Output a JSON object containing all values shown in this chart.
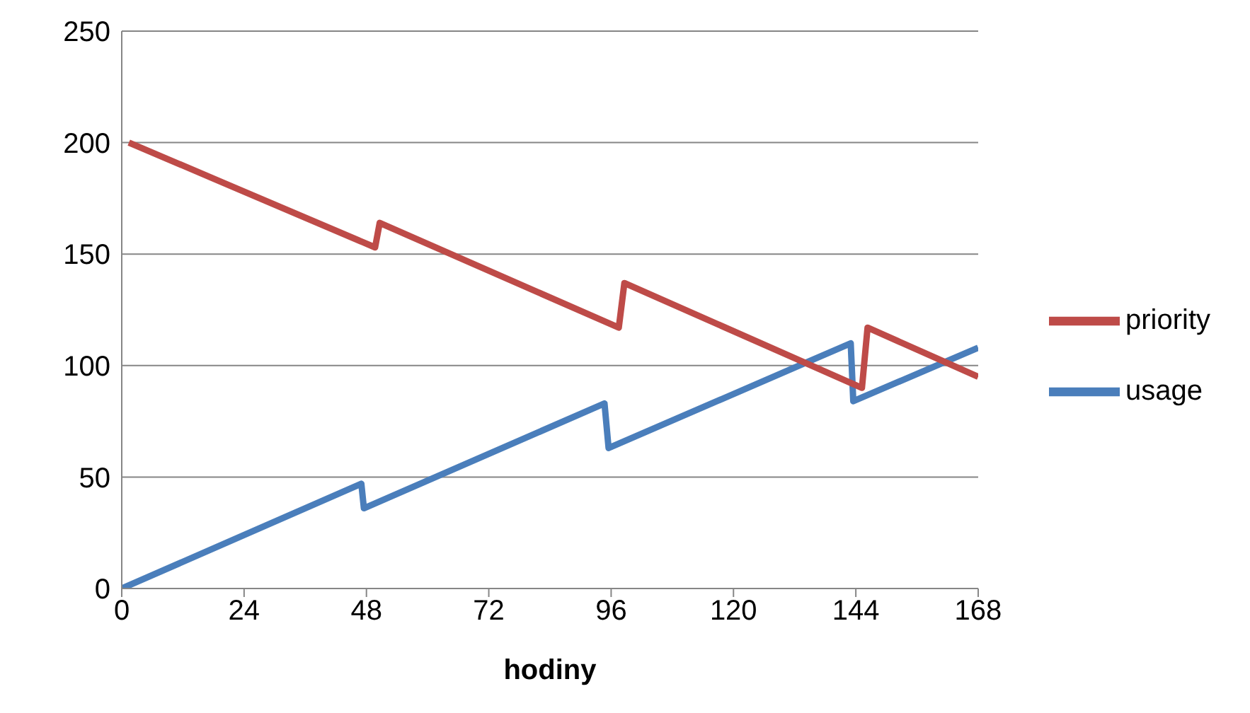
{
  "chart_data": {
    "type": "line",
    "xlabel": "hodiny",
    "xlim": [
      0,
      168
    ],
    "xticks": [
      0,
      24,
      48,
      72,
      96,
      120,
      144,
      168
    ],
    "ylim": [
      0,
      250
    ],
    "yticks": [
      0,
      50,
      100,
      150,
      200,
      250
    ],
    "grid": "y",
    "legend": "right",
    "marker": "none",
    "line_style": "solid",
    "series": [
      {
        "name": "usage",
        "color": "#4a7ebb",
        "x": [
          0,
          47,
          47.5,
          94.7,
          95.5,
          143,
          143.5,
          168
        ],
        "values": [
          0,
          47,
          36,
          83,
          63,
          110,
          84,
          108
        ]
      },
      {
        "name": "priority",
        "color": "#be4b48",
        "x": [
          1.4,
          49.7,
          50.6,
          97.5,
          98.6,
          145.2,
          146.3,
          168
        ],
        "values": [
          200,
          153,
          164,
          117,
          137,
          90,
          117,
          95
        ]
      }
    ]
  }
}
